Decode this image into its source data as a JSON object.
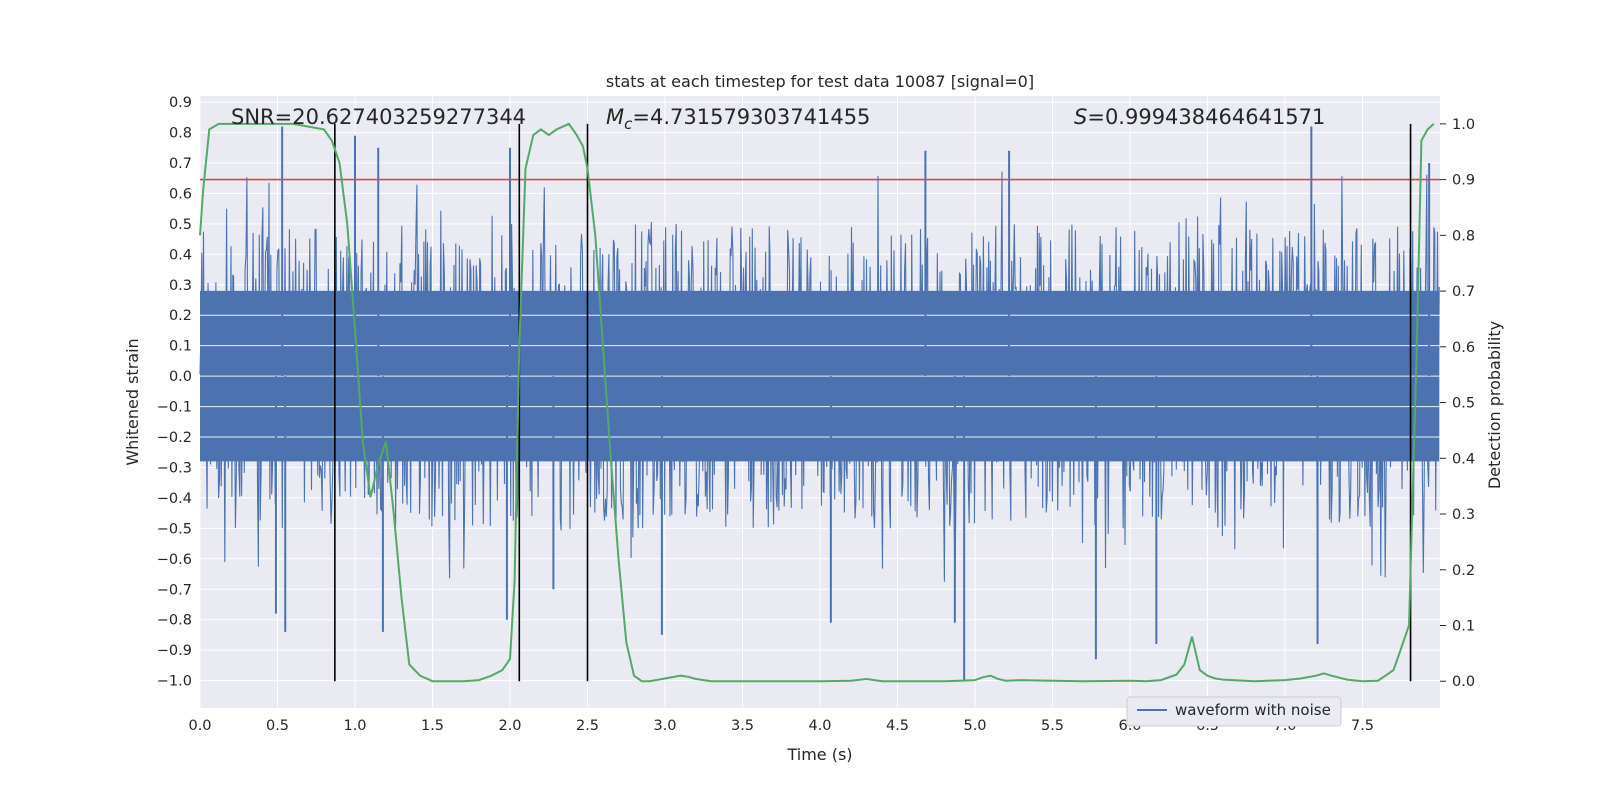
{
  "chart_data": {
    "type": "line",
    "title": "stats at each timestep for test data 10087 [signal=0]",
    "xlabel": "Time (s)",
    "ylabel": "Whitened strain",
    "y2label": "Detection probability",
    "xlim": [
      0.0,
      8.0
    ],
    "ylim": [
      -1.09,
      0.92
    ],
    "y2lim": [
      -0.048,
      1.05
    ],
    "xticks": [
      0.0,
      0.5,
      1.0,
      1.5,
      2.0,
      2.5,
      3.0,
      3.5,
      4.0,
      4.5,
      5.0,
      5.5,
      6.0,
      6.5,
      7.0,
      7.5
    ],
    "xtick_labels": [
      "0.0",
      "0.5",
      "1.0",
      "1.5",
      "2.0",
      "2.5",
      "3.0",
      "3.5",
      "4.0",
      "4.5",
      "5.0",
      "5.5",
      "6.0",
      "6.5",
      "7.0",
      "7.5"
    ],
    "yticks": [
      0.9,
      0.8,
      0.7,
      0.6,
      0.5,
      0.4,
      0.3,
      0.2,
      0.1,
      0.0,
      -0.1,
      -0.2,
      -0.3,
      -0.4,
      -0.5,
      -0.6,
      -0.7,
      -0.8,
      -0.9,
      -1.0
    ],
    "ytick_labels": [
      "0.9",
      "0.8",
      "0.7",
      "0.6",
      "0.5",
      "0.4",
      "0.3",
      "0.2",
      "0.1",
      "0.0",
      "−0.1",
      "−0.2",
      "−0.3",
      "−0.4",
      "−0.5",
      "−0.6",
      "−0.7",
      "−0.8",
      "−0.9",
      "−1.0"
    ],
    "y2ticks": [
      1.0,
      0.9,
      0.8,
      0.7,
      0.6,
      0.5,
      0.4,
      0.3,
      0.2,
      0.1,
      0.0
    ],
    "y2tick_labels": [
      "1.0",
      "0.9",
      "0.8",
      "0.7",
      "0.6",
      "0.5",
      "0.4",
      "0.3",
      "0.2",
      "0.1",
      "0.0"
    ],
    "annotations": {
      "snr": "SNR=20.627403259277344",
      "mc_symbol": "M",
      "mc_sub": "c",
      "mc_value": "=4.731579303741455",
      "s_symbol": "S",
      "s_value": "=0.999438464641571"
    },
    "threshold": {
      "y2": 0.9,
      "color": "#c44e52"
    },
    "event_lines_x": [
      0.87,
      2.06,
      2.5,
      7.81
    ],
    "series": [
      {
        "name": "waveform with noise",
        "axis": "left",
        "color": "#4c72b0",
        "noise_profile": {
          "sample_count": 1400,
          "core_amplitude": 0.28,
          "typical_peak": 0.5,
          "max_value": 0.82,
          "min_value": -1.0,
          "spikes": [
            {
              "x": 0.53,
              "y": 0.82
            },
            {
              "x": 0.55,
              "y": -0.84
            },
            {
              "x": 0.49,
              "y": -0.78
            },
            {
              "x": 1.0,
              "y": 0.79
            },
            {
              "x": 1.18,
              "y": -0.84
            },
            {
              "x": 1.15,
              "y": 0.75
            },
            {
              "x": 1.98,
              "y": -0.8
            },
            {
              "x": 2.0,
              "y": 0.75
            },
            {
              "x": 2.28,
              "y": -0.7
            },
            {
              "x": 2.98,
              "y": -0.85
            },
            {
              "x": 4.07,
              "y": -0.81
            },
            {
              "x": 4.68,
              "y": 0.74
            },
            {
              "x": 4.87,
              "y": -0.81
            },
            {
              "x": 4.93,
              "y": -1.0
            },
            {
              "x": 5.22,
              "y": 0.74
            },
            {
              "x": 5.78,
              "y": -0.93
            },
            {
              "x": 6.17,
              "y": -0.88
            },
            {
              "x": 7.17,
              "y": 0.82
            },
            {
              "x": 7.21,
              "y": -0.88
            },
            {
              "x": 7.93,
              "y": 0.7
            }
          ]
        }
      },
      {
        "name": "",
        "axis": "right",
        "color": "#55a868",
        "x": [
          0.0,
          0.02,
          0.06,
          0.12,
          0.2,
          0.4,
          0.6,
          0.8,
          0.85,
          0.9,
          0.95,
          1.0,
          1.05,
          1.1,
          1.15,
          1.2,
          1.25,
          1.3,
          1.35,
          1.42,
          1.5,
          1.6,
          1.7,
          1.8,
          1.88,
          1.95,
          2.0,
          2.03,
          2.06,
          2.1,
          2.15,
          2.2,
          2.25,
          2.3,
          2.38,
          2.43,
          2.47,
          2.5,
          2.55,
          2.6,
          2.65,
          2.7,
          2.75,
          2.8,
          2.85,
          2.9,
          3.0,
          3.1,
          3.15,
          3.2,
          3.3,
          3.5,
          3.8,
          4.0,
          4.2,
          4.3,
          4.4,
          4.6,
          4.8,
          4.9,
          5.0,
          5.05,
          5.1,
          5.15,
          5.2,
          5.3,
          5.5,
          5.7,
          6.0,
          6.1,
          6.2,
          6.3,
          6.35,
          6.4,
          6.45,
          6.5,
          6.55,
          6.6,
          6.8,
          7.0,
          7.1,
          7.2,
          7.25,
          7.3,
          7.4,
          7.5,
          7.6,
          7.7,
          7.75,
          7.8,
          7.85,
          7.88,
          7.92,
          7.96
        ],
        "y": [
          0.8,
          0.88,
          0.99,
          1.0,
          1.0,
          1.0,
          1.0,
          0.99,
          0.97,
          0.93,
          0.82,
          0.63,
          0.43,
          0.33,
          0.39,
          0.43,
          0.3,
          0.15,
          0.03,
          0.01,
          0.0,
          0.0,
          0.0,
          0.002,
          0.01,
          0.02,
          0.04,
          0.18,
          0.6,
          0.92,
          0.98,
          0.99,
          0.98,
          0.99,
          1.0,
          0.98,
          0.96,
          0.92,
          0.8,
          0.6,
          0.4,
          0.22,
          0.07,
          0.01,
          0.0,
          0.0,
          0.005,
          0.01,
          0.008,
          0.004,
          0.0,
          0.0,
          0.0,
          0.0,
          0.001,
          0.004,
          0.0,
          0.0,
          0.0,
          0.001,
          0.002,
          0.007,
          0.01,
          0.004,
          0.001,
          0.002,
          0.001,
          0.0,
          0.001,
          0.0,
          0.002,
          0.012,
          0.03,
          0.08,
          0.02,
          0.01,
          0.005,
          0.003,
          0.0,
          0.002,
          0.005,
          0.01,
          0.014,
          0.01,
          0.003,
          0.0,
          0.001,
          0.02,
          0.06,
          0.1,
          0.6,
          0.97,
          0.99,
          1.0
        ]
      }
    ],
    "legend": {
      "location": "lower-right",
      "entries": [
        "waveform with noise"
      ]
    },
    "grid": true,
    "colors": {
      "axes_bg": "#eaeaf2",
      "grid": "#ffffff",
      "text": "#262626",
      "event_line": "#000000"
    }
  }
}
